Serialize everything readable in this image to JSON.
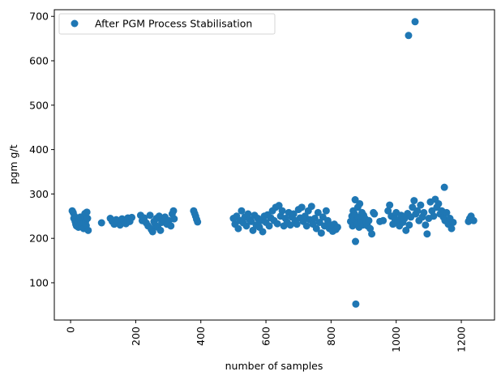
{
  "chart_data": {
    "type": "scatter",
    "title": "",
    "xlabel": "number of samples",
    "ylabel": "pgm g/t",
    "xlim": [
      -50,
      1302
    ],
    "ylim": [
      16,
      715
    ],
    "xticks": [
      0,
      200,
      400,
      600,
      800,
      1000,
      1200
    ],
    "yticks": [
      100,
      200,
      300,
      400,
      500,
      600,
      700
    ],
    "xtick_rotation": 90,
    "grid": false,
    "legend": {
      "position": "top-left",
      "entries": [
        "After PGM Process Stabilisation"
      ]
    },
    "series": [
      {
        "name": "After PGM Process Stabilisation",
        "color": "#1f77b4",
        "x": [
          5,
          8,
          10,
          12,
          14,
          16,
          18,
          20,
          22,
          24,
          26,
          28,
          30,
          32,
          34,
          36,
          38,
          40,
          42,
          44,
          46,
          48,
          50,
          52,
          54,
          95,
          122,
          128,
          134,
          140,
          146,
          152,
          158,
          164,
          170,
          176,
          182,
          188,
          215,
          220,
          226,
          232,
          238,
          244,
          248,
          252,
          256,
          260,
          264,
          268,
          272,
          276,
          280,
          285,
          290,
          296,
          302,
          308,
          312,
          316,
          318,
          378,
          381,
          384,
          387,
          390,
          500,
          505,
          510,
          515,
          520,
          525,
          530,
          535,
          540,
          545,
          550,
          555,
          560,
          565,
          570,
          575,
          580,
          585,
          590,
          595,
          600,
          605,
          610,
          615,
          620,
          625,
          630,
          635,
          640,
          645,
          650,
          655,
          660,
          665,
          670,
          675,
          680,
          685,
          690,
          695,
          700,
          705,
          710,
          715,
          720,
          725,
          730,
          735,
          740,
          745,
          750,
          755,
          760,
          765,
          770,
          775,
          780,
          785,
          790,
          795,
          800,
          805,
          810,
          815,
          820,
          860,
          864,
          866,
          868,
          870,
          872,
          874,
          875,
          876,
          878,
          880,
          882,
          884,
          886,
          888,
          890,
          892,
          895,
          898,
          900,
          904,
          908,
          912,
          916,
          920,
          925,
          930,
          933,
          950,
          960,
          975,
          980,
          985,
          990,
          995,
          1000,
          1005,
          1010,
          1015,
          1020,
          1025,
          1030,
          1035,
          1038,
          1040,
          1045,
          1050,
          1055,
          1058,
          1060,
          1065,
          1070,
          1075,
          1080,
          1085,
          1090,
          1095,
          1100,
          1105,
          1110,
          1115,
          1120,
          1125,
          1130,
          1135,
          1140,
          1145,
          1148,
          1150,
          1155,
          1160,
          1165,
          1170,
          1175,
          1222,
          1226,
          1230,
          1234,
          1238
        ],
        "y": [
          262,
          258,
          245,
          250,
          238,
          232,
          228,
          240,
          236,
          225,
          244,
          230,
          248,
          235,
          227,
          241,
          233,
          222,
          250,
          256,
          238,
          229,
          259,
          245,
          218,
          235,
          245,
          238,
          232,
          242,
          236,
          230,
          244,
          240,
          233,
          246,
          238,
          247,
          252,
          240,
          246,
          235,
          228,
          252,
          220,
          215,
          238,
          230,
          245,
          225,
          250,
          218,
          236,
          242,
          248,
          232,
          240,
          228,
          255,
          262,
          244,
          262,
          256,
          250,
          243,
          237,
          245,
          232,
          250,
          222,
          240,
          262,
          235,
          248,
          228,
          255,
          242,
          238,
          218,
          252,
          230,
          245,
          225,
          240,
          215,
          250,
          236,
          253,
          228,
          246,
          262,
          240,
          270,
          233,
          274,
          250,
          262,
          228,
          245,
          236,
          258,
          230,
          248,
          255,
          240,
          232,
          265,
          246,
          270,
          238,
          250,
          228,
          262,
          242,
          272,
          232,
          245,
          222,
          258,
          236,
          212,
          248,
          228,
          262,
          240,
          222,
          230,
          216,
          232,
          220,
          225,
          238,
          250,
          228,
          262,
          244,
          255,
          287,
          193,
          52,
          240,
          232,
          270,
          248,
          225,
          278,
          242,
          236,
          258,
          230,
          252,
          245,
          235,
          228,
          240,
          222,
          210,
          258,
          255,
          238,
          240,
          262,
          275,
          250,
          232,
          245,
          258,
          240,
          228,
          252,
          236,
          244,
          218,
          256,
          657,
          230,
          248,
          270,
          285,
          688,
          255,
          262,
          240,
          275,
          248,
          258,
          230,
          210,
          245,
          282,
          262,
          250,
          288,
          270,
          278,
          255,
          262,
          248,
          315,
          240,
          258,
          232,
          245,
          222,
          236,
          238,
          245,
          250,
          242,
          240
        ]
      }
    ]
  }
}
